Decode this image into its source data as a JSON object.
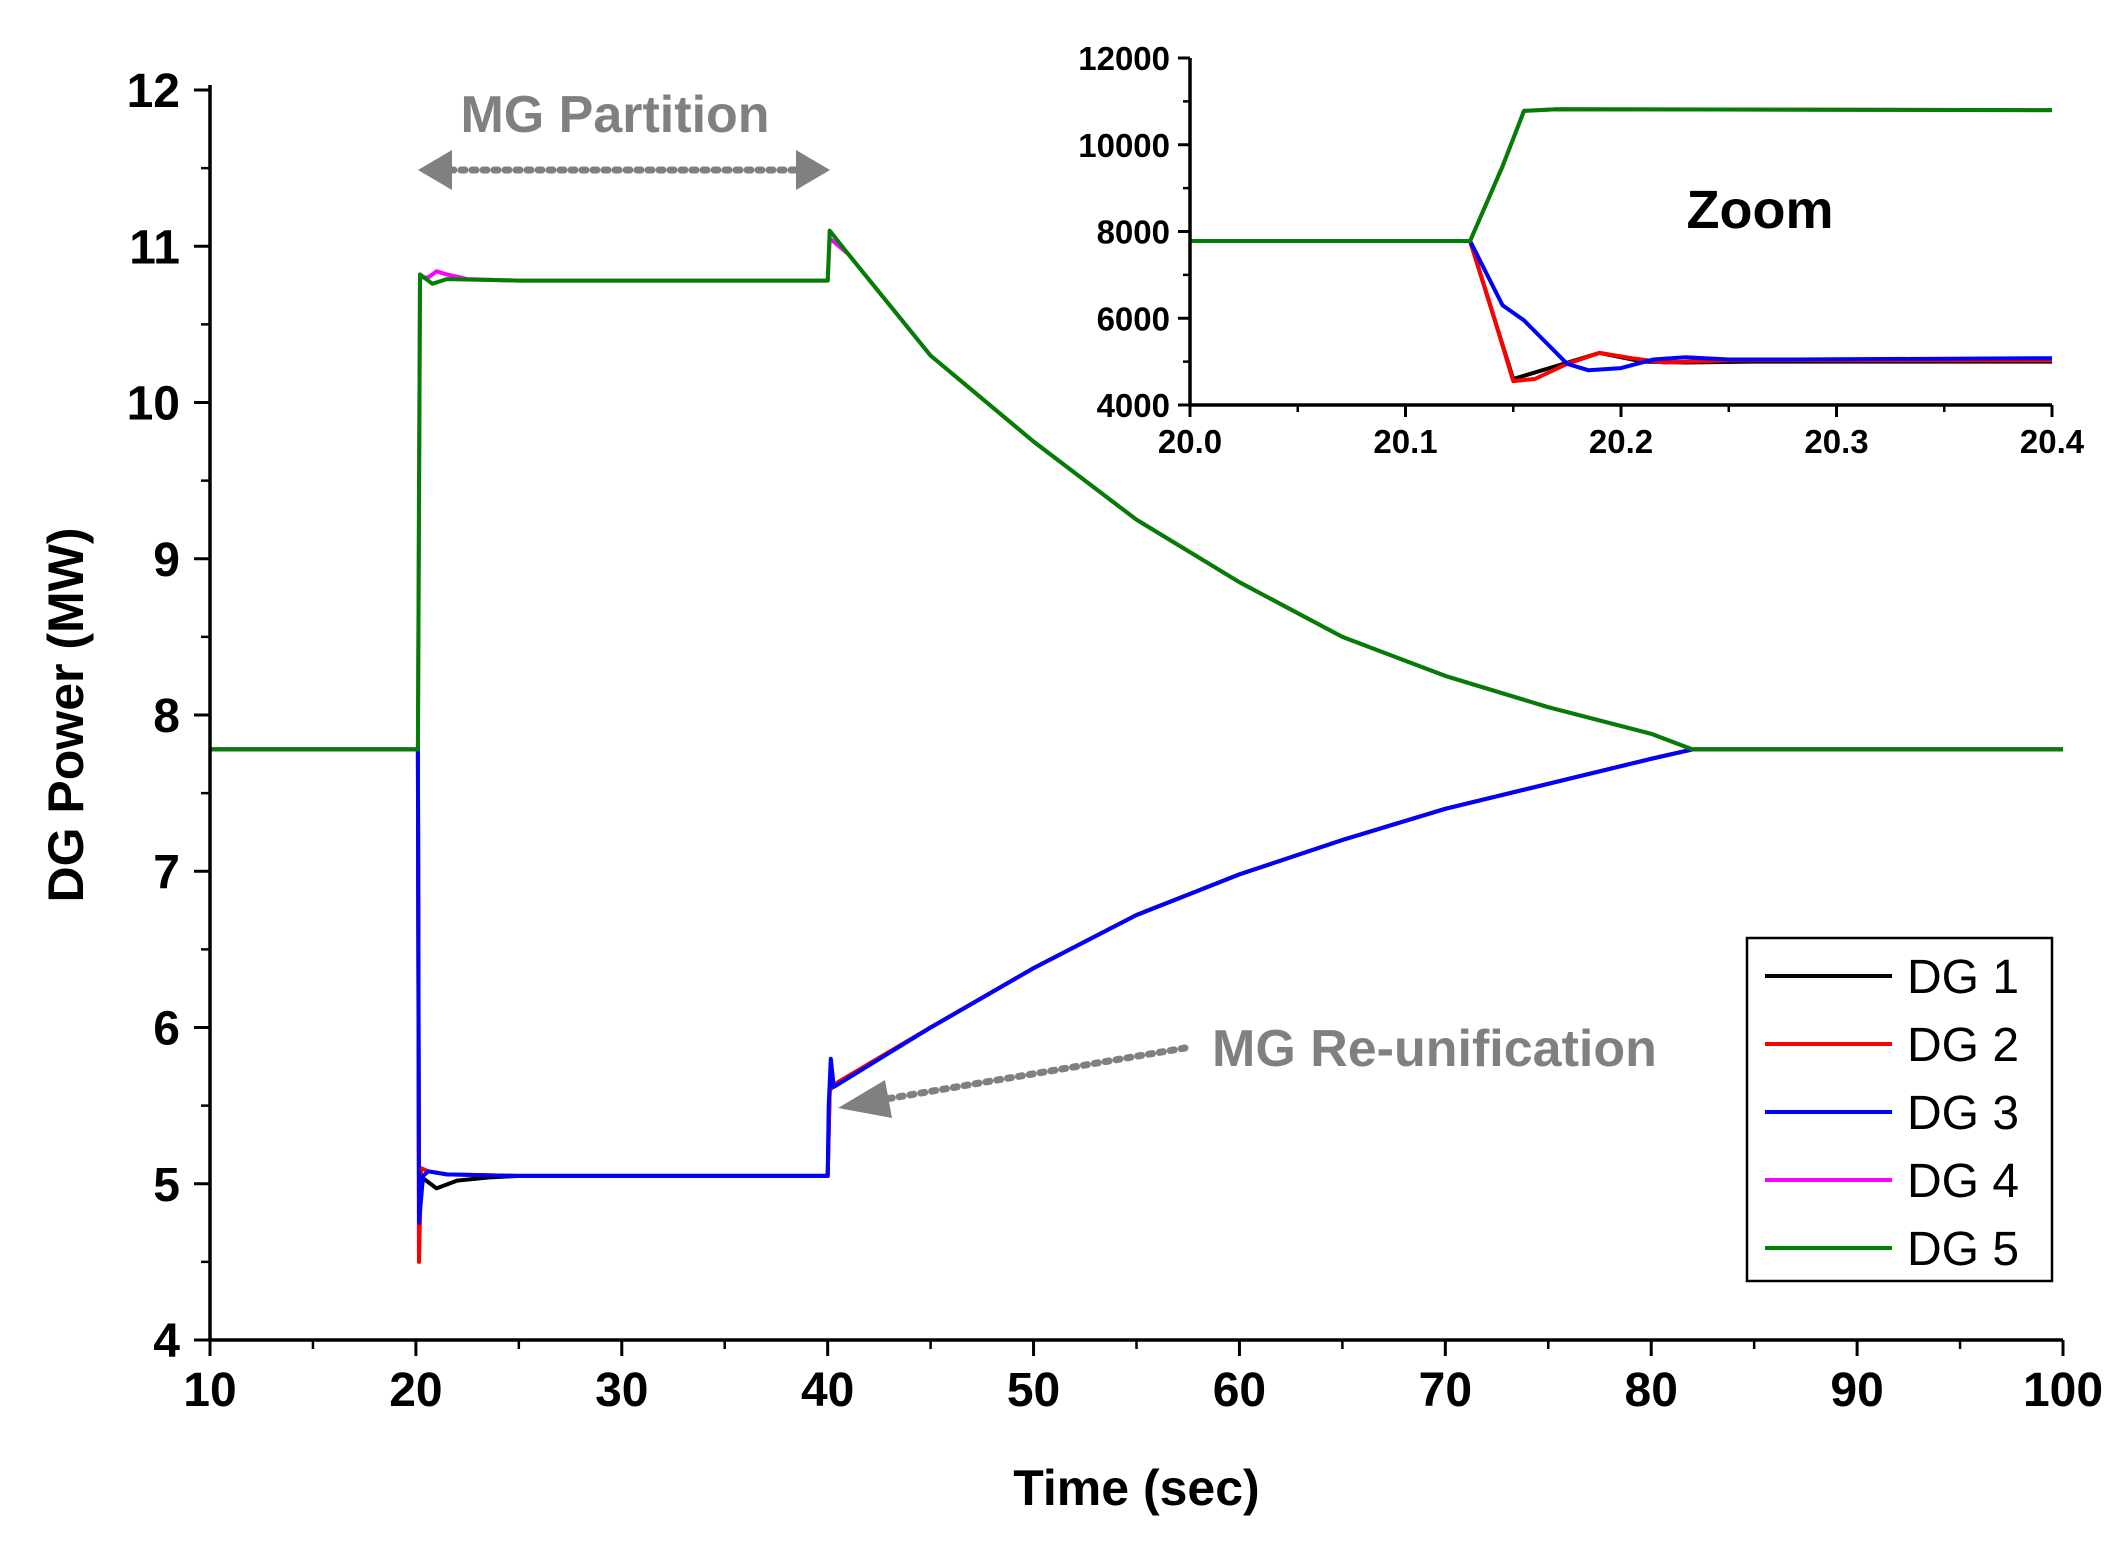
{
  "chart_data": [
    {
      "type": "line",
      "name": "main",
      "xlabel": "Time (sec)",
      "ylabel": "DG Power (MW)",
      "xlim": [
        10,
        100
      ],
      "ylim": [
        4,
        12
      ],
      "xticks": [
        10,
        20,
        30,
        40,
        50,
        60,
        70,
        80,
        90,
        100
      ],
      "yticks": [
        4,
        5,
        6,
        7,
        8,
        9,
        10,
        11,
        12
      ],
      "legend_position": "bottom-right",
      "series": [
        {
          "name": "DG 1",
          "color": "#000000",
          "points": [
            [
              10,
              7.78
            ],
            [
              20.1,
              7.78
            ],
            [
              20.15,
              5.0
            ],
            [
              20.3,
              5.04
            ],
            [
              21.0,
              4.97
            ],
            [
              22.0,
              5.02
            ],
            [
              23.5,
              5.04
            ],
            [
              25,
              5.05
            ],
            [
              40,
              5.05
            ],
            [
              40.1,
              5.6
            ],
            [
              40.5,
              5.65
            ],
            [
              45,
              6.0
            ],
            [
              50,
              6.38
            ],
            [
              55,
              6.72
            ],
            [
              60,
              6.98
            ],
            [
              65,
              7.2
            ],
            [
              70,
              7.4
            ],
            [
              75,
              7.56
            ],
            [
              80,
              7.72
            ],
            [
              82,
              7.78
            ],
            [
              100,
              7.78
            ]
          ]
        },
        {
          "name": "DG 2",
          "color": "#ff0000",
          "points": [
            [
              10,
              7.78
            ],
            [
              20.1,
              7.78
            ],
            [
              20.15,
              4.5
            ],
            [
              20.25,
              5.1
            ],
            [
              20.6,
              5.08
            ],
            [
              21.5,
              5.06
            ],
            [
              25,
              5.05
            ],
            [
              40,
              5.05
            ],
            [
              40.1,
              5.6
            ],
            [
              40.5,
              5.65
            ],
            [
              45,
              6.0
            ],
            [
              50,
              6.38
            ],
            [
              55,
              6.72
            ],
            [
              60,
              6.98
            ],
            [
              65,
              7.2
            ],
            [
              70,
              7.4
            ],
            [
              75,
              7.56
            ],
            [
              80,
              7.72
            ],
            [
              82,
              7.78
            ],
            [
              100,
              7.78
            ]
          ]
        },
        {
          "name": "DG 3",
          "color": "#0000ff",
          "points": [
            [
              10,
              7.78
            ],
            [
              20.1,
              7.78
            ],
            [
              20.15,
              4.75
            ],
            [
              20.35,
              5.05
            ],
            [
              20.6,
              5.08
            ],
            [
              21.5,
              5.06
            ],
            [
              25,
              5.05
            ],
            [
              40,
              5.05
            ],
            [
              40.05,
              5.5
            ],
            [
              40.15,
              5.8
            ],
            [
              40.3,
              5.62
            ],
            [
              45,
              6.0
            ],
            [
              50,
              6.38
            ],
            [
              55,
              6.72
            ],
            [
              60,
              6.98
            ],
            [
              65,
              7.2
            ],
            [
              70,
              7.4
            ],
            [
              75,
              7.56
            ],
            [
              80,
              7.72
            ],
            [
              82,
              7.78
            ],
            [
              100,
              7.78
            ]
          ]
        },
        {
          "name": "DG 4",
          "color": "#ff00ff",
          "points": [
            [
              10,
              7.78
            ],
            [
              20.1,
              7.78
            ],
            [
              20.2,
              10.8
            ],
            [
              20.6,
              10.8
            ],
            [
              21.0,
              10.84
            ],
            [
              21.5,
              10.82
            ],
            [
              22.5,
              10.79
            ],
            [
              25,
              10.78
            ],
            [
              40,
              10.78
            ],
            [
              40.1,
              11.05
            ],
            [
              41,
              10.95
            ],
            [
              45,
              10.3
            ],
            [
              50,
              9.75
            ],
            [
              55,
              9.25
            ],
            [
              60,
              8.85
            ],
            [
              65,
              8.5
            ],
            [
              70,
              8.25
            ],
            [
              75,
              8.05
            ],
            [
              80,
              7.88
            ],
            [
              82,
              7.78
            ],
            [
              100,
              7.78
            ]
          ]
        },
        {
          "name": "DG 5",
          "color": "#008000",
          "points": [
            [
              10,
              7.78
            ],
            [
              20.1,
              7.78
            ],
            [
              20.2,
              10.82
            ],
            [
              20.8,
              10.76
            ],
            [
              21.5,
              10.79
            ],
            [
              25,
              10.78
            ],
            [
              40,
              10.78
            ],
            [
              40.1,
              11.1
            ],
            [
              41,
              10.95
            ],
            [
              45,
              10.3
            ],
            [
              50,
              9.75
            ],
            [
              55,
              9.25
            ],
            [
              60,
              8.85
            ],
            [
              65,
              8.5
            ],
            [
              70,
              8.25
            ],
            [
              75,
              8.05
            ],
            [
              80,
              7.88
            ],
            [
              82,
              7.78
            ],
            [
              100,
              7.78
            ]
          ]
        }
      ]
    },
    {
      "type": "line",
      "name": "inset",
      "xlim": [
        20.0,
        20.4
      ],
      "ylim": [
        4000,
        12000
      ],
      "xticks": [
        20.0,
        20.1,
        20.2,
        20.3,
        20.4
      ],
      "xtick_labels": [
        "20.0",
        "20.1",
        "20.2",
        "20.3",
        "20.4"
      ],
      "yticks": [
        4000,
        6000,
        8000,
        10000,
        12000
      ],
      "series": [
        {
          "name": "DG 1",
          "color": "#000000",
          "points": [
            [
              20.0,
              7780
            ],
            [
              20.13,
              7780
            ],
            [
              20.15,
              4600
            ],
            [
              20.17,
              4900
            ],
            [
              20.19,
              5200
            ],
            [
              20.21,
              5000
            ],
            [
              20.23,
              4980
            ],
            [
              20.26,
              5000
            ],
            [
              20.4,
              5000
            ]
          ]
        },
        {
          "name": "DG 2",
          "color": "#ff0000",
          "points": [
            [
              20.0,
              7780
            ],
            [
              20.13,
              7780
            ],
            [
              20.14,
              6200
            ],
            [
              20.15,
              4550
            ],
            [
              20.16,
              4600
            ],
            [
              20.175,
              4950
            ],
            [
              20.19,
              5200
            ],
            [
              20.205,
              5080
            ],
            [
              20.22,
              4980
            ],
            [
              20.25,
              5030
            ],
            [
              20.4,
              5030
            ]
          ]
        },
        {
          "name": "DG 3",
          "color": "#0000ff",
          "points": [
            [
              20.0,
              7780
            ],
            [
              20.13,
              7780
            ],
            [
              20.145,
              6300
            ],
            [
              20.155,
              5950
            ],
            [
              20.165,
              5450
            ],
            [
              20.175,
              4950
            ],
            [
              20.185,
              4800
            ],
            [
              20.2,
              4850
            ],
            [
              20.215,
              5050
            ],
            [
              20.23,
              5100
            ],
            [
              20.25,
              5050
            ],
            [
              20.28,
              5050
            ],
            [
              20.4,
              5080
            ]
          ]
        },
        {
          "name": "DG 4",
          "color": "#ff00ff",
          "points": [
            [
              20.0,
              7780
            ],
            [
              20.13,
              7780
            ],
            [
              20.145,
              9500
            ],
            [
              20.155,
              10780
            ],
            [
              20.17,
              10820
            ],
            [
              20.4,
              10800
            ]
          ]
        },
        {
          "name": "DG 5",
          "color": "#008000",
          "points": [
            [
              20.0,
              7780
            ],
            [
              20.13,
              7780
            ],
            [
              20.145,
              9500
            ],
            [
              20.155,
              10780
            ],
            [
              20.17,
              10820
            ],
            [
              20.4,
              10800
            ]
          ]
        }
      ]
    }
  ],
  "annotations": {
    "partition": "MG Partition",
    "reunification": "MG Re-unification",
    "zoom": "Zoom"
  }
}
